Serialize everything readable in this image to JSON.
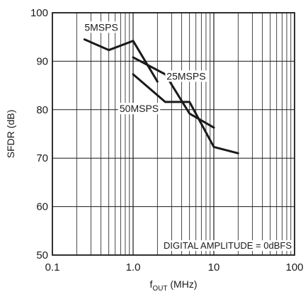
{
  "chart_data": {
    "type": "line",
    "xscale": "log",
    "xlim": [
      0.1,
      100
    ],
    "ylim": [
      50,
      100
    ],
    "grid": true,
    "xlabel_main": "f",
    "xlabel_sub": "OUT",
    "xlabel_unit": " (MHz)",
    "ylabel": "SFDR (dB)",
    "x_ticks": [
      0.1,
      1,
      10,
      100
    ],
    "x_tick_labels": [
      "0.1",
      "1.0",
      "10",
      "100"
    ],
    "y_ticks": [
      50,
      60,
      70,
      80,
      90,
      100
    ],
    "y_tick_labels": [
      "50",
      "60",
      "70",
      "80",
      "90",
      "100"
    ],
    "annotation": "DIGITAL AMPLITUDE = 0dBFS",
    "series": [
      {
        "name": "5MSPS",
        "x": [
          0.25,
          0.5,
          1.0,
          2.0
        ],
        "y": [
          94.5,
          92.3,
          94.2,
          85.8
        ]
      },
      {
        "name": "25MSPS",
        "x": [
          1.0,
          2.5,
          5.0,
          10.0,
          20.0
        ],
        "y": [
          87.3,
          81.6,
          81.6,
          72.3,
          71.0
        ]
      },
      {
        "name": "50MSPS",
        "x": [
          1.0,
          2.5,
          5.0,
          10.0
        ],
        "y": [
          90.8,
          87.3,
          79.2,
          76.3
        ]
      }
    ],
    "colors": {
      "line": "#1a1a1a",
      "grid": "#1a1a1a",
      "background": "#ffffff"
    }
  }
}
